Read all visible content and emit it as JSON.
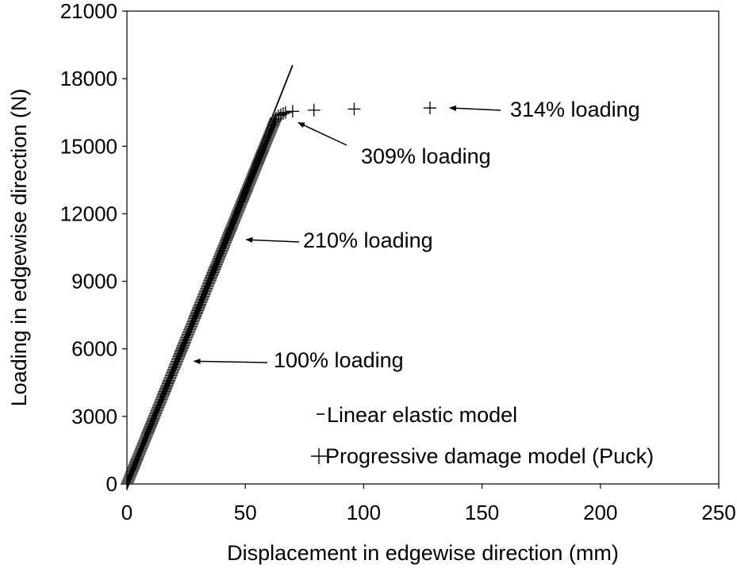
{
  "chart_data": {
    "type": "scatter",
    "xlabel": "Displacement in edgewise direction (mm)",
    "ylabel": "Loading in edgewise direction (N)",
    "xlim": [
      0,
      250
    ],
    "ylim": [
      0,
      21000
    ],
    "x_ticks": [
      "0",
      "50",
      "100",
      "150",
      "200",
      "250"
    ],
    "y_ticks": [
      "0",
      "3000",
      "6000",
      "9000",
      "12000",
      "15000",
      "18000",
      "21000"
    ],
    "grid": false,
    "legend_position": "bottom-right",
    "series": [
      {
        "name": "Linear elastic model",
        "style": "line",
        "color": "#000000",
        "x": [
          0,
          70
        ],
        "y": [
          0,
          18600
        ]
      },
      {
        "name": "Progressive damage model (Puck)",
        "style": "plus-markers",
        "color": "#000000",
        "dense_segment": {
          "x_start": 0,
          "y_start": 0,
          "x_end": 63,
          "y_end": 16250
        },
        "x": [
          64,
          65,
          66,
          67,
          70,
          79,
          96,
          128
        ],
        "y": [
          16350,
          16400,
          16450,
          16500,
          16550,
          16600,
          16650,
          16700
        ]
      }
    ],
    "annotations": [
      {
        "text": "100% loading",
        "x": 25,
        "y": 5450
      },
      {
        "text": "210% loading",
        "x": 47,
        "y": 10850
      },
      {
        "text": "309% loading",
        "x": 69,
        "y": 16050
      },
      {
        "text": "314% loading",
        "x": 133,
        "y": 16700
      }
    ]
  }
}
